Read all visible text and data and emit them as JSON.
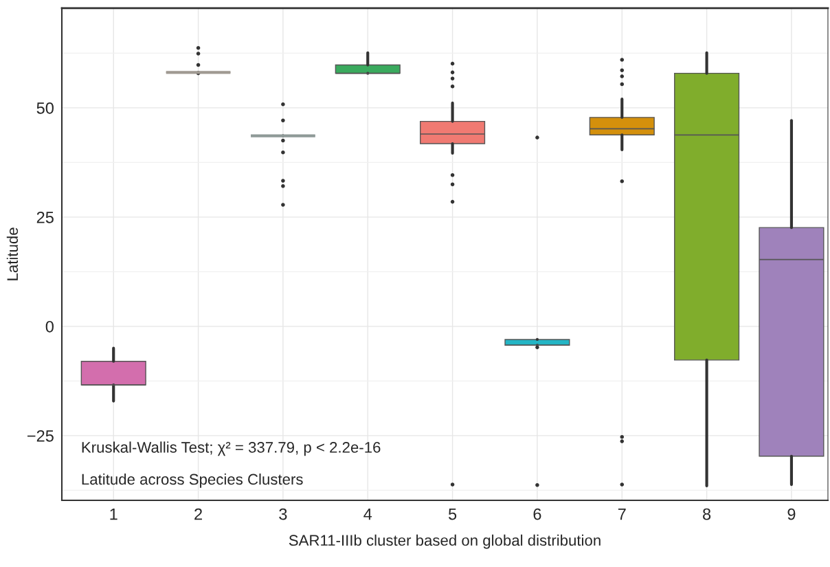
{
  "chart_data": {
    "type": "box",
    "xlabel": "SAR11-IIIb cluster based on global distribution",
    "ylabel": "Latitude",
    "categories": [
      "1",
      "2",
      "3",
      "4",
      "5",
      "6",
      "7",
      "8",
      "9"
    ],
    "colors": [
      "#d36ead",
      "#a09a92",
      "#8f9a98",
      "#3aaa5e",
      "#f07a72",
      "#24b5c5",
      "#d4900c",
      "#80ad2c",
      "#9f82bb"
    ],
    "boxes": [
      {
        "low": -17.1,
        "q1": -13.4,
        "median": -13.4,
        "q3": -8.0,
        "high": -5.0
      },
      {
        "low": 58.1,
        "q1": 58.1,
        "median": 58.1,
        "q3": 58.1,
        "high": 58.1,
        "outliers": [
          63.7,
          62.4,
          59.8,
          57.9
        ]
      },
      {
        "low": 43.6,
        "q1": 43.6,
        "median": 43.6,
        "q3": 43.6,
        "high": 43.6,
        "outliers": [
          50.8,
          47.1,
          42.5,
          39.8,
          33.3,
          32.1,
          27.8
        ]
      },
      {
        "low": 57.9,
        "q1": 57.9,
        "median": 57.9,
        "q3": 59.8,
        "high": 62.6
      },
      {
        "low": 39.6,
        "q1": 41.8,
        "median": 44.0,
        "q3": 46.9,
        "high": 51.1,
        "outliers": [
          60.1,
          58.1,
          56.7,
          54.9,
          34.6,
          32.5,
          28.5,
          -36.2
        ]
      },
      {
        "low": -4.3,
        "q1": -4.3,
        "median": -4.3,
        "q3": -3.0,
        "high": -3.0,
        "outliers": [
          43.2,
          -4.8,
          -36.3
        ]
      },
      {
        "low": 40.4,
        "q1": 43.8,
        "median": 45.2,
        "q3": 47.8,
        "high": 52.0,
        "outliers": [
          61.0,
          58.6,
          57.2,
          55.4,
          33.2,
          -25.3,
          -26.3,
          -36.2
        ]
      },
      {
        "low": -36.5,
        "q1": -7.7,
        "median": 43.8,
        "q3": 57.9,
        "high": 62.6
      },
      {
        "low": -36.2,
        "q1": -29.7,
        "median": 15.3,
        "q3": 22.6,
        "high": 47.1
      }
    ],
    "ylim": [
      -39.8,
      72.8
    ],
    "yticks": [
      {
        "value": -25,
        "label": "−25"
      },
      0,
      25,
      50
    ],
    "grid": true,
    "annotations": [
      "Kruskal-Wallis Test; χ² = 337.79, p < 2.2e-16",
      "Latitude across Species Clusters"
    ]
  }
}
